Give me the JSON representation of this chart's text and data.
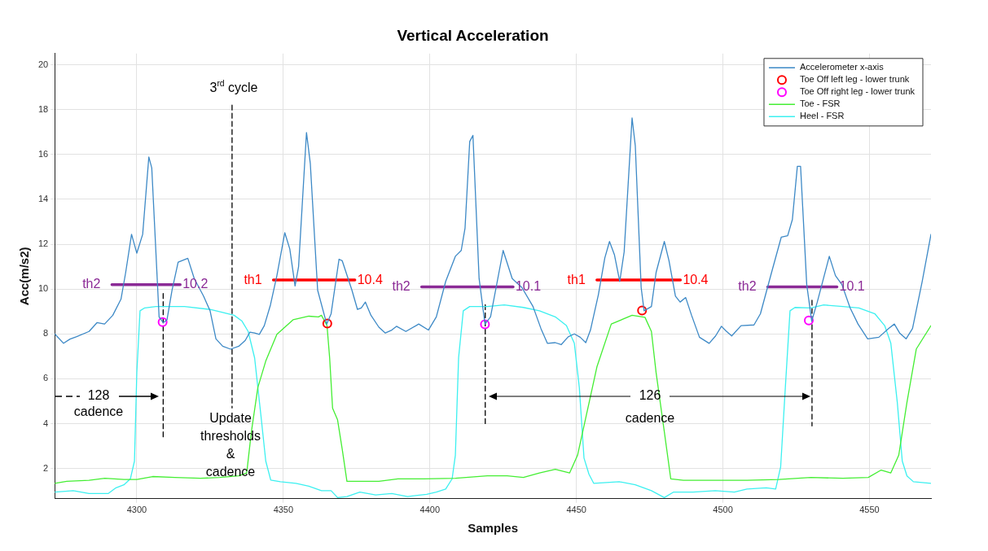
{
  "chart_data": {
    "type": "line",
    "title": "Vertical Acceleration",
    "xlabel": "Samples",
    "ylabel": "Acc(m/s2)",
    "xlim": [
      4272,
      4571
    ],
    "ylim": [
      0.65,
      20.5
    ],
    "xticks": [
      4300,
      4350,
      4400,
      4450,
      4500,
      4550
    ],
    "yticks": [
      2,
      4,
      6,
      8,
      10,
      12,
      14,
      16,
      18,
      20
    ],
    "grid": true,
    "legend": "top right",
    "series": [
      {
        "name": "Accelerometer x-axis",
        "color": "#3d89c6",
        "x": [
          4272,
          4275,
          4277.2,
          4279.3,
          4283.7,
          4286.4,
          4289,
          4291.8,
          4294.6,
          4296.2,
          4298.2,
          4300,
          4302,
          4304.1,
          4305.1,
          4307.6,
          4309,
          4310.3,
          4312,
          4314.1,
          4317.4,
          4319.6,
          4322.8,
          4325,
          4327,
          4329.3,
          4332,
          4334.8,
          4337,
          4338.6,
          4340.2,
          4341.8,
          4343.5,
          4345.6,
          4347.8,
          4350.5,
          4352.2,
          4354,
          4355.2,
          4357.9,
          4359.2,
          4361.7,
          4364.8,
          4366.3,
          4369,
          4370.1,
          4373.4,
          4375.3,
          4376.6,
          4378,
          4379.9,
          4382.6,
          4384.8,
          4387,
          4388.6,
          4391.8,
          4396.2,
          4399.5,
          4402.2,
          4405.4,
          4408.7,
          4410.7,
          4412,
          4413.6,
          4414.7,
          4416.8,
          4418.8,
          4420.7,
          4425,
          4428.1,
          4431.4,
          4435.2,
          4437.9,
          4440.1,
          4442.8,
          4444.8,
          4447.2,
          4449.3,
          4451.3,
          4453.2,
          4454.8,
          4457.5,
          4459.7,
          4461.3,
          4463,
          4464.8,
          4466.3,
          4469,
          4470.1,
          4472.1,
          4473.1,
          4475.6,
          4477.2,
          4480,
          4481.6,
          4483.8,
          4485.4,
          4487.3,
          4489.3,
          4492,
          4495.3,
          4497.5,
          4499.5,
          4501.1,
          4503,
          4506.2,
          4510.6,
          4512.8,
          4516.6,
          4519.9,
          4522.1,
          4523.7,
          4525.4,
          4526.5,
          4528.6,
          4530.3,
          4532.2,
          4536.3,
          4538.4,
          4540.6,
          4543.4,
          4546.1,
          4549.4,
          4553.2,
          4556.5,
          4558.5,
          4560.3,
          4562.5,
          4564.7,
          4568,
          4571
        ],
        "values": [
          8.0,
          7.58,
          7.77,
          7.87,
          8.11,
          8.5,
          8.44,
          8.83,
          9.55,
          10.74,
          12.44,
          11.6,
          12.44,
          15.89,
          15.4,
          8.76,
          8.5,
          8.63,
          9.94,
          11.2,
          11.37,
          10.47,
          9.68,
          9.03,
          7.78,
          7.45,
          7.32,
          7.45,
          7.71,
          8.08,
          8.04,
          7.98,
          8.37,
          9.29,
          10.6,
          12.51,
          11.79,
          10.14,
          11.0,
          16.98,
          15.6,
          9.95,
          8.44,
          8.9,
          11.33,
          11.26,
          9.95,
          9.09,
          9.16,
          9.42,
          8.83,
          8.3,
          8.04,
          8.17,
          8.34,
          8.11,
          8.44,
          8.17,
          8.76,
          10.34,
          11.46,
          11.72,
          12.71,
          16.58,
          16.85,
          10.47,
          8.44,
          8.76,
          11.72,
          10.47,
          10.07,
          9.22,
          8.24,
          7.58,
          7.61,
          7.52,
          7.87,
          8.0,
          7.85,
          7.61,
          8.17,
          9.75,
          11.39,
          12.12,
          11.52,
          10.34,
          11.66,
          17.63,
          16.39,
          10.07,
          9.03,
          9.22,
          10.74,
          12.12,
          11.26,
          9.68,
          9.42,
          9.62,
          8.83,
          7.85,
          7.58,
          7.91,
          8.34,
          8.13,
          7.91,
          8.37,
          8.4,
          8.9,
          10.74,
          12.31,
          12.38,
          13.1,
          15.47,
          15.47,
          10.2,
          8.57,
          9.42,
          11.46,
          10.6,
          10.2,
          9.16,
          8.44,
          7.78,
          7.85,
          8.24,
          8.44,
          8.04,
          7.78,
          8.24,
          10.34,
          12.44
        ]
      },
      {
        "name": "Toe Off left leg - lower trunk",
        "type": "scatter",
        "marker": "circle",
        "color": "#ff0000",
        "x": [
          4365,
          4472.4
        ],
        "values": [
          8.46,
          9.04
        ]
      },
      {
        "name": "Toe Off right leg - lower trunk",
        "type": "scatter",
        "marker": "circle",
        "color": "#ff00ff",
        "x": [
          4308.8,
          4418.8,
          4529.3
        ],
        "values": [
          8.53,
          8.43,
          8.6
        ]
      },
      {
        "name": "Toe - FSR",
        "color": "#44ee33",
        "x": [
          4272,
          4276.1,
          4283.7,
          4289.1,
          4295.6,
          4300,
          4305.4,
          4313,
          4321.7,
          4328.3,
          4334.8,
          4337.5,
          4339.1,
          4341.3,
          4344,
          4347.8,
          4353.3,
          4358.7,
          4362,
          4363,
          4364.9,
          4365.8,
          4366.8,
          4368.5,
          4370.1,
          4371.7,
          4376.1,
          4382.6,
          4389.1,
          4397.8,
          4408.7,
          4419.6,
          4426.4,
          4431.9,
          4437.4,
          4442.8,
          4447.7,
          4450.4,
          4453.7,
          4457,
          4461.9,
          4469,
          4473.4,
          4475.6,
          4477.2,
          4480,
          4482.2,
          4486.5,
          4497.5,
          4508.2,
          4519.1,
          4530,
          4540.9,
          4549.6,
          4554,
          4557.3,
          4560,
          4562.8,
          4566,
          4571
        ],
        "values": [
          1.34,
          1.43,
          1.47,
          1.56,
          1.51,
          1.51,
          1.64,
          1.6,
          1.56,
          1.6,
          1.67,
          1.8,
          3.64,
          5.61,
          6.79,
          7.98,
          8.63,
          8.79,
          8.76,
          8.83,
          8.37,
          6.93,
          4.69,
          4.17,
          2.85,
          1.43,
          1.43,
          1.43,
          1.54,
          1.54,
          1.56,
          1.67,
          1.67,
          1.6,
          1.8,
          1.96,
          1.8,
          2.59,
          4.56,
          6.53,
          8.44,
          8.83,
          8.74,
          8.11,
          6.27,
          3.64,
          1.54,
          1.47,
          1.47,
          1.47,
          1.51,
          1.6,
          1.56,
          1.6,
          1.93,
          1.8,
          2.59,
          4.95,
          7.33,
          8.37
        ]
      },
      {
        "name": "Heel - FSR",
        "color": "#3cf0f0",
        "x": [
          4272,
          4278.3,
          4283.7,
          4290.2,
          4292.9,
          4295.6,
          4297.8,
          4299.2,
          4300,
          4301.1,
          4302.7,
          4306.5,
          4316.3,
          4325,
          4329.3,
          4333.2,
          4335.9,
          4338,
          4340.2,
          4342.4,
          4344,
          4345.7,
          4349,
          4354.3,
          4358.7,
          4363,
          4366.3,
          4368.5,
          4371.7,
          4376.1,
          4381.5,
          4387,
          4392.4,
          4398.9,
          4402.2,
          4405.4,
          4407.6,
          4408.7,
          4409.8,
          4411.4,
          4413.6,
          4419.6,
          4425.4,
          4431.9,
          4437.4,
          4442.8,
          4446.6,
          4449.3,
          4451,
          4452.6,
          4454.3,
          4455.9,
          4464.6,
          4470.1,
          4475.6,
          4480,
          4483.2,
          4489.8,
          4497.4,
          4503.9,
          4508.2,
          4514.8,
          4518,
          4519.7,
          4521.3,
          4522.9,
          4524.6,
          4530,
          4534.4,
          4541,
          4546.4,
          4551.9,
          4555.2,
          4557.3,
          4559.5,
          4561.2,
          4562.8,
          4565,
          4571
        ],
        "values": [
          0.95,
          1.01,
          0.88,
          0.88,
          1.14,
          1.27,
          1.54,
          2.33,
          6.27,
          9.03,
          9.16,
          9.22,
          9.22,
          9.09,
          8.96,
          8.83,
          8.57,
          8.11,
          6.93,
          4.3,
          2.33,
          1.48,
          1.41,
          1.34,
          1.21,
          1.01,
          1.01,
          0.7,
          0.75,
          0.95,
          0.82,
          0.88,
          0.75,
          0.85,
          0.95,
          1.08,
          1.54,
          2.59,
          6.93,
          9.03,
          9.22,
          9.22,
          9.29,
          9.18,
          9.03,
          8.76,
          8.37,
          7.58,
          5.61,
          2.46,
          1.74,
          1.34,
          1.41,
          1.27,
          1.01,
          0.7,
          0.95,
          0.95,
          1.01,
          0.95,
          1.08,
          1.14,
          1.08,
          2.07,
          5.61,
          9.03,
          9.18,
          9.16,
          9.29,
          9.22,
          9.16,
          8.89,
          8.37,
          7.58,
          4.95,
          2.33,
          1.67,
          1.41,
          1.34
        ]
      },
      {
        "color": "#8b2a96",
        "x": [
          4291.5,
          4314.8
        ],
        "values": [
          10.2,
          10.2
        ]
      },
      {
        "color": "#ff0000",
        "x": [
          4346.6,
          4374.4
        ],
        "values": [
          10.4,
          10.4
        ]
      },
      {
        "color": "#8b2a96",
        "x": [
          4397.2,
          4428.4
        ],
        "values": [
          10.1,
          10.1
        ]
      },
      {
        "color": "#ff0000",
        "x": [
          4457,
          4485.5
        ],
        "values": [
          10.4,
          10.4
        ]
      },
      {
        "color": "#8b2a96",
        "x": [
          4515.3,
          4538.9
        ],
        "values": [
          10.1,
          10.1
        ]
      },
      {
        "color": "#000000",
        "line_style": "dashed",
        "x": [
          4309,
          4309
        ],
        "values": [
          9.8,
          3.3
        ]
      },
      {
        "color": "#000000",
        "line_style": "dashed",
        "x": [
          4332.5,
          4332.5
        ],
        "values": [
          18.2,
          4.7
        ]
      },
      {
        "color": "#000000",
        "line_style": "dashed",
        "x": [
          4418.9,
          4418.9
        ],
        "values": [
          9.3,
          3.9
        ]
      },
      {
        "color": "#000000",
        "line_style": "dashed",
        "x": [
          4530.4,
          4530.4
        ],
        "values": [
          9.5,
          3.9
        ]
      }
    ],
    "annotations": [
      "3$^{rd}$ cycle",
      {
        "text": "th2",
        "x": 4291.5,
        "y": 10.2
      },
      {
        "text": "10.2",
        "x": 4314.8,
        "y": 10.2
      },
      {
        "text": "th1",
        "x": 4346.6,
        "y": 10.4
      },
      {
        "text": "10.4",
        "x": 4374.4,
        "y": 10.4
      },
      {
        "text": "th2",
        "x": 4397.2,
        "y": 10.1
      },
      {
        "text": "10.1",
        "x": 4428.4,
        "y": 10.1
      },
      {
        "text": "th1",
        "x": 4457,
        "y": 10.4
      },
      {
        "text": "10.4",
        "x": 4485.5,
        "y": 10.4
      },
      {
        "text": "th2",
        "x": 4515.3,
        "y": 10.1
      },
      {
        "text": "10.1",
        "x": 4538.9,
        "y": 10.1
      },
      "128",
      "cadence",
      "126",
      "cadence",
      "Update\nthresholds\n&\ncadence"
    ]
  }
}
